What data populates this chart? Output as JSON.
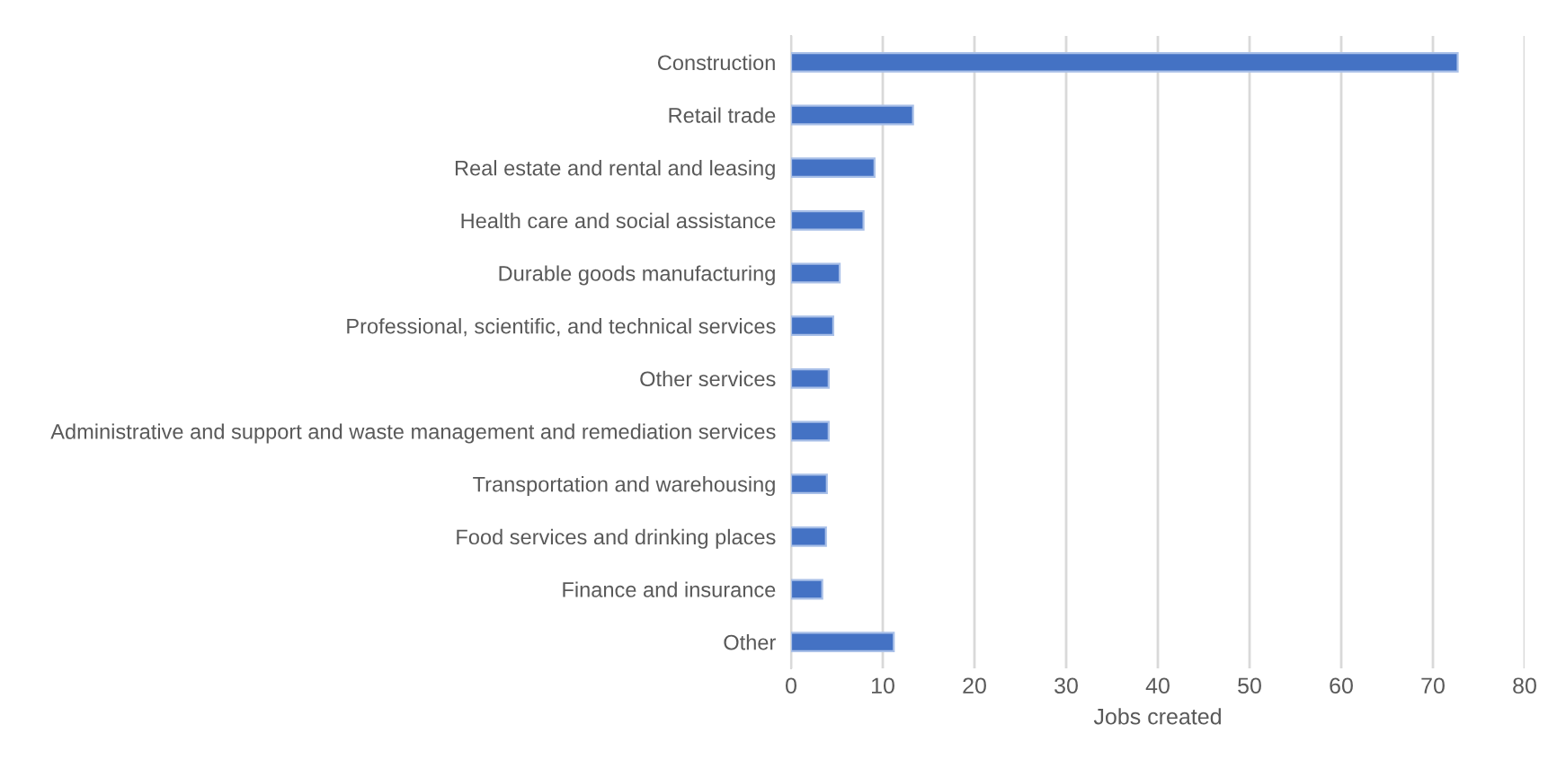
{
  "chart_data": {
    "type": "bar",
    "orientation": "horizontal",
    "xlabel": "Jobs created",
    "categories": [
      "Construction",
      "Retail trade",
      "Real estate and rental and leasing",
      "Health care and social assistance",
      "Durable goods manufacturing",
      "Professional, scientific, and technical services",
      "Other services",
      "Administrative and support and waste management and remediation services",
      "Transportation and warehousing",
      "Food services and drinking places",
      "Finance and insurance",
      "Other"
    ],
    "values": [
      72.7,
      13.3,
      9.1,
      7.9,
      5.3,
      4.6,
      4.1,
      4.1,
      3.9,
      3.8,
      3.4,
      11.2
    ],
    "color": "#4472c4",
    "xlim": [
      0,
      80
    ],
    "xticks": [
      0,
      10,
      20,
      30,
      40,
      50,
      60,
      70,
      80
    ],
    "grid": "x",
    "legend": false
  }
}
